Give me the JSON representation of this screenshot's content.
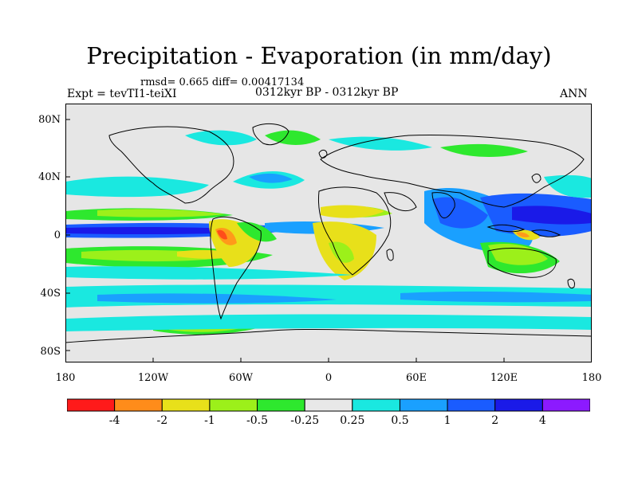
{
  "title": "Precipitation - Evaporation (in mm/day)",
  "subtitle_stats": "rmsd= 0.665  diff= 0.00417134",
  "experiment": "Expt = tevTI1-teiXI",
  "period": "0312kyr BP - 0312kyr BP",
  "season": "ANN",
  "y_ticks": [
    "80N",
    "40N",
    "0",
    "40S",
    "80S"
  ],
  "x_ticks": [
    "180",
    "120W",
    "60W",
    "0",
    "60E",
    "120E",
    "180"
  ],
  "colorbar": {
    "labels": [
      "-4",
      "-2",
      "-1",
      "-0.5",
      "-0.25",
      "0.25",
      "0.5",
      "1",
      "2",
      "4"
    ],
    "colors": [
      "#ff1a1a",
      "#ff8c1a",
      "#e8e01a",
      "#9cf01a",
      "#2ee82e",
      "#e8e8e8",
      "#1ae8e0",
      "#1aa0ff",
      "#1a5cff",
      "#1a1ae8",
      "#8c1aff"
    ]
  },
  "field_colors": {
    "neutral": "#e6e6e6",
    "dry_strong": "#ff4d1a",
    "dry_medium": "#ff9a1a",
    "dry_light": "#e8e01a",
    "dry_weak": "#9cf01a",
    "dry_slight": "#2ee82e",
    "wet_slight": "#1ae8e0",
    "wet_weak": "#1aa0ff",
    "wet_medium": "#1a5cff",
    "wet_strong": "#1a1ae8"
  }
}
